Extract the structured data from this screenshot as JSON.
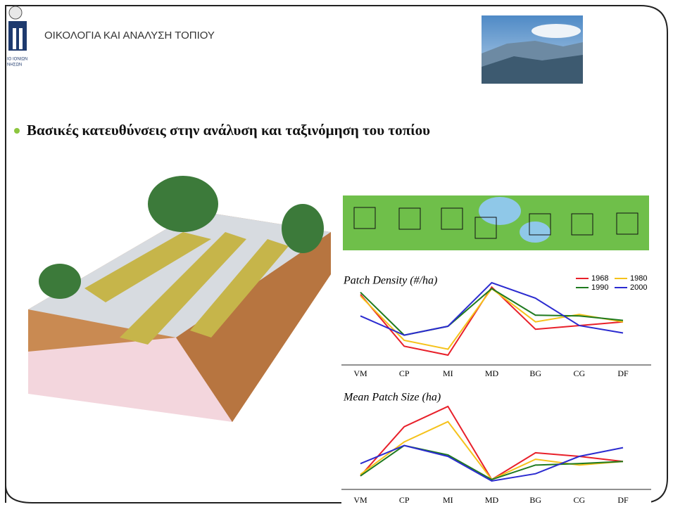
{
  "header": {
    "title": "ΟΙΚΟΛΟΓΙΑ ΚΑΙ ΑΝΑΛΥΣΗ ΤΟΠΙΟΥ",
    "logo_lines": [
      "ΙΟ ΙΟΝΙΩΝ",
      "ΝΗΣΩΝ"
    ]
  },
  "bullet": "Βασικές κατευθύνσεις στην ανάλυση και ταξινόμηση του τοπίου",
  "chart_data": [
    {
      "type": "line",
      "title": "Patch Density (#/ha)",
      "legend": true,
      "categories": [
        "VM",
        "CP",
        "MI",
        "MD",
        "BG",
        "CG",
        "DF"
      ],
      "series": [
        {
          "name": "1968",
          "color": "#e8202a",
          "values": [
            102,
            32,
            20,
            112,
            55,
            60,
            65
          ]
        },
        {
          "name": "1980",
          "color": "#f5c21b",
          "values": [
            100,
            40,
            28,
            110,
            65,
            75,
            65
          ]
        },
        {
          "name": "1990",
          "color": "#1f7a1f",
          "values": [
            105,
            47,
            59,
            110,
            74,
            73,
            67
          ]
        },
        {
          "name": "2000",
          "color": "#2b2bd0",
          "values": [
            73,
            47,
            59,
            118,
            97,
            60,
            50
          ]
        }
      ]
    },
    {
      "type": "line",
      "title": "Mean Patch Size (ha)",
      "legend": false,
      "categories": [
        "VM",
        "CP",
        "MI",
        "MD",
        "BG",
        "CG",
        "DF"
      ],
      "series": [
        {
          "color": "#e8202a",
          "values": [
            25,
            93,
            121,
            20,
            57,
            52,
            45
          ]
        },
        {
          "color": "#f5c21b",
          "values": [
            27,
            72,
            100,
            20,
            48,
            40,
            45
          ]
        },
        {
          "color": "#1f7a1f",
          "values": [
            25,
            67,
            54,
            20,
            40,
            42,
            45
          ]
        },
        {
          "color": "#2b2bd0",
          "values": [
            42,
            67,
            52,
            18,
            28,
            52,
            64
          ]
        }
      ]
    }
  ]
}
